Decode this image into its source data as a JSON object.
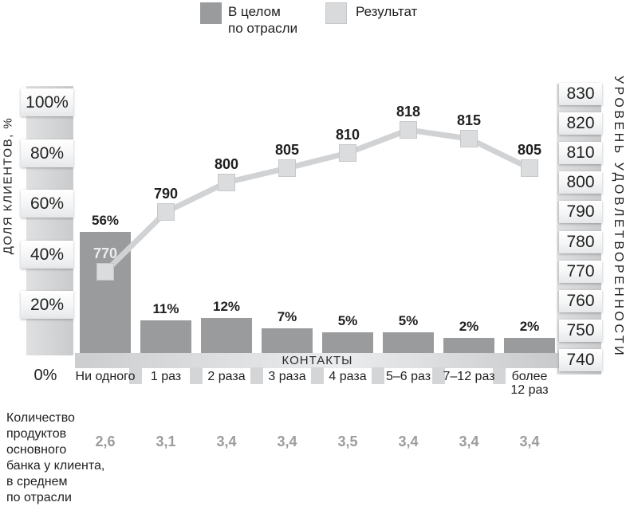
{
  "colors": {
    "bar": "#9a9b9d",
    "line": "#d0d2d4",
    "marker_fill": "#dbdcde",
    "marker_border": "#c6c8ca",
    "text_dark": "#1f1f1f",
    "label_in_bar": "#ececee",
    "value_muted": "#9b9c9e",
    "legend_result_swatch": "#d9dadc"
  },
  "legend": {
    "items": [
      {
        "label": "В целом\nпо отрасли",
        "swatch_color": "#9a9b9d"
      },
      {
        "label": "Результат",
        "swatch_color": "#d9dadc"
      }
    ]
  },
  "left_axis": {
    "title": "ДОЛЯ КЛИЕНТОВ, %",
    "tick_labels": [
      "100%",
      "80%",
      "60%",
      "40%",
      "20%"
    ],
    "zero_label": "0%"
  },
  "right_axis": {
    "title": "УРОВЕНЬ УДОВЛЕТВОРЕННОСТИ",
    "tick_labels": [
      "830",
      "820",
      "810",
      "800",
      "790",
      "780",
      "770",
      "760",
      "750",
      "740"
    ]
  },
  "x_axis": {
    "title": "КОНТАКТЫ",
    "categories": [
      "Ни одного",
      "1 раз",
      "2 раза",
      "3 раза",
      "4 раза",
      "5–6 раз",
      "7–12 раз",
      "более\n12 раз"
    ]
  },
  "bars": {
    "labels": [
      "56%",
      "11%",
      "12%",
      "7%",
      "5%",
      "5%",
      "2%",
      "2%"
    ]
  },
  "line": {
    "labels": [
      "770",
      "790",
      "800",
      "805",
      "810",
      "818",
      "815",
      "805"
    ]
  },
  "footer": {
    "label": "Количество\nпродуктов\nосновного\nбанка у клиента,\nв среднем\nпо отрасли",
    "values": [
      "2,6",
      "3,1",
      "3,4",
      "3,4",
      "3,5",
      "3,4",
      "3,4",
      "3,4"
    ]
  },
  "chart_data": {
    "type": "bar+line combo",
    "categories": [
      "Ни одного",
      "1 раз",
      "2 раза",
      "3 раза",
      "4 раза",
      "5–6 раз",
      "7–12 раз",
      "более 12 раз"
    ],
    "series": [
      {
        "name": "В целом по отрасли",
        "type": "bar",
        "axis": "left",
        "unit": "% клиентов",
        "values": [
          56,
          11,
          12,
          7,
          5,
          5,
          2,
          2
        ]
      },
      {
        "name": "Результат",
        "type": "line",
        "axis": "right",
        "unit": "уровень удовлетворенности",
        "values": [
          770,
          790,
          800,
          805,
          810,
          818,
          815,
          805
        ]
      }
    ],
    "xlabel": "КОНТАКТЫ",
    "left_axis": {
      "label": "ДОЛЯ КЛИЕНТОВ, %",
      "range": [
        0,
        100
      ],
      "ticks": [
        0,
        20,
        40,
        60,
        80,
        100
      ]
    },
    "right_axis": {
      "label": "УРОВЕНЬ УДОВЛЕТВОРЕННОСТИ",
      "range": [
        740,
        830
      ],
      "ticks": [
        740,
        750,
        760,
        770,
        780,
        790,
        800,
        810,
        820,
        830
      ]
    },
    "annotation_row": {
      "label": "Количество продуктов основного банка у клиента, в среднем по отрасли",
      "values": [
        2.6,
        3.1,
        3.4,
        3.4,
        3.5,
        3.4,
        3.4,
        3.4
      ]
    },
    "legend_position": "top",
    "grid": false
  }
}
